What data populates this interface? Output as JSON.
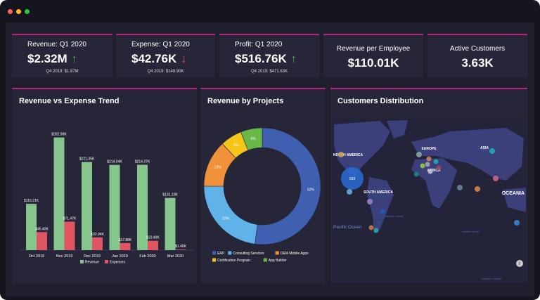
{
  "window": {
    "dots": [
      "#ff5f57",
      "#febc2e",
      "#28c840"
    ]
  },
  "kpis": [
    {
      "title": "Revenue: Q1 2020",
      "value": "$2.32M",
      "trend": "up",
      "arrow": "↑",
      "sub": "Q4 2019: $1.87M"
    },
    {
      "title": "Expense: Q1 2020",
      "value": "$42.76K",
      "trend": "down",
      "arrow": "↓",
      "sub": "Q4 2019: $148.90K"
    },
    {
      "title": "Profit: Q1 2020",
      "value": "$516.76K",
      "trend": "up",
      "arrow": "↑",
      "sub": "Q4 2019: $471.63K"
    },
    {
      "title": "Revenue per Employee",
      "value": "$110.01K"
    },
    {
      "title": "Active Customers",
      "value": "3.63K"
    }
  ],
  "colors": {
    "up": "#4caf50",
    "down": "#e04a5a",
    "accent": "#b5267a"
  },
  "panels": {
    "trend": "Revenue vs Expense Trend",
    "projects": "Revenue by Projects",
    "customers": "Customers Distribution"
  },
  "chart_data": [
    {
      "type": "bar",
      "title": "Revenue vs Expense Trend",
      "categories": [
        "Oct 2019",
        "Nov 2019",
        "Dec 2019",
        "Jan 2020",
        "Feb 2020",
        "Mar 2020"
      ],
      "ylim": [
        0,
        300
      ],
      "legend": "bottom",
      "series": [
        {
          "name": "Revenue",
          "color": "#86c68c",
          "values": [
            116.21,
            282.98,
            221.35,
            214.04,
            214.37,
            131.1
          ],
          "labels": [
            "$116.21K",
            "$282.98K",
            "$221.35K",
            "$214.04K",
            "$214.37K",
            "$131.10K"
          ]
        },
        {
          "name": "Expenses",
          "color": "#e05563",
          "values": [
            45.4,
            71.47,
            32.04,
            17.88,
            23.4,
            1.48
          ],
          "labels": [
            "$45.40K",
            "$71.47K",
            "$32.04K",
            "$17.88K",
            "$23.40K",
            "$1.48K"
          ]
        }
      ]
    },
    {
      "type": "pie",
      "title": "Revenue by Projects",
      "legend": "bottom",
      "slices": [
        {
          "name": "ERP",
          "value": 52,
          "label": "52%",
          "color": "#3f5fb0"
        },
        {
          "name": "Consulting Services",
          "value": 23,
          "label": "23%",
          "color": "#5fb3e8"
        },
        {
          "name": "OEM Mobile Apps",
          "value": 13,
          "label": "13%",
          "color": "#f0923a"
        },
        {
          "name": "Certification Program",
          "value": 6,
          "label": "6%",
          "color": "#f5c518"
        },
        {
          "name": "App Builder",
          "value": 6,
          "label": "6%",
          "color": "#6ab84a"
        }
      ]
    }
  ],
  "map": {
    "regions": [
      "NORTH AMERICA",
      "EUROPE",
      "ASIA",
      "AFRICA",
      "SOUTH AMERICA",
      "OCEANIA"
    ],
    "oceans": [
      "Atlantic Ocean",
      "Pacific Ocean",
      "Indian Ocean",
      "Southern Ocean"
    ],
    "bubble_label": "599"
  }
}
